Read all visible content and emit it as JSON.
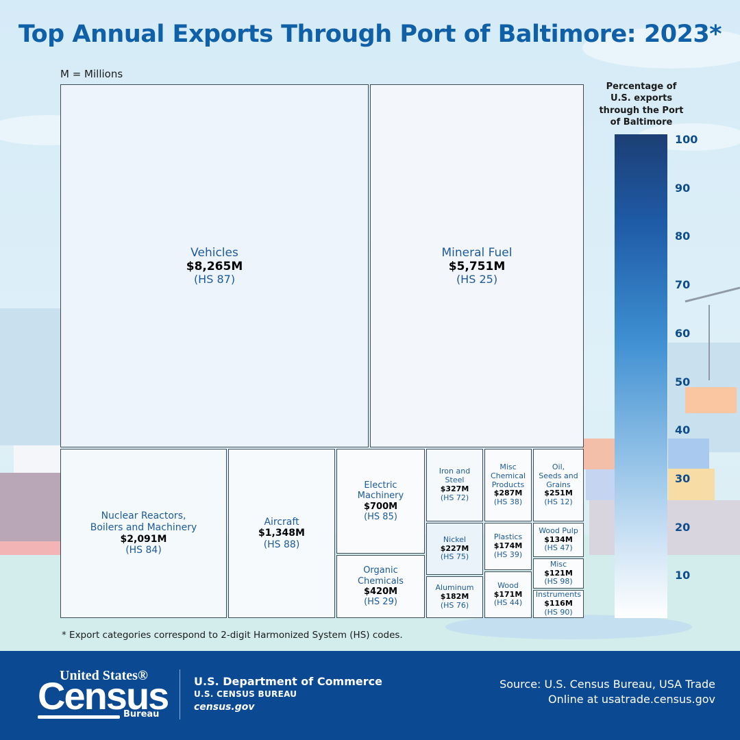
{
  "title": "Top Annual Exports Through Port of Baltimore: 2023*",
  "units_note": "M = Millions",
  "footnote": "* Export categories correspond to 2-digit Harmonized System (HS) codes.",
  "chart_data": {
    "type": "treemap",
    "title": "Top Annual Exports Through Port of Baltimore: 2023*",
    "value_unit": "Millions of dollars",
    "color_scale": {
      "label": "Percentage of U.S. exports through the Port of Baltimore",
      "ticks": [
        100,
        90,
        80,
        70,
        60,
        50,
        40,
        30,
        20,
        10
      ],
      "range": [
        0,
        100
      ],
      "colors": [
        "#ffffff",
        "#1c3f74"
      ]
    },
    "items": [
      {
        "name": "Vehicles",
        "value_label": "$8,265M",
        "value": 8265,
        "hs": "(HS 87)"
      },
      {
        "name": "Mineral Fuel",
        "value_label": "$5,751M",
        "value": 5751,
        "hs": "(HS 25)"
      },
      {
        "name": "Nuclear Reactors, Boilers and Machinery",
        "value_label": "$2,091M",
        "value": 2091,
        "hs": "(HS 84)"
      },
      {
        "name": "Aircraft",
        "value_label": "$1,348M",
        "value": 1348,
        "hs": "(HS 88)"
      },
      {
        "name": "Electric Machinery",
        "value_label": "$700M",
        "value": 700,
        "hs": "(HS 85)"
      },
      {
        "name": "Organic Chemicals",
        "value_label": "$420M",
        "value": 420,
        "hs": "(HS 29)"
      },
      {
        "name": "Iron and Steel",
        "value_label": "$327M",
        "value": 327,
        "hs": "(HS 72)"
      },
      {
        "name": "Nickel",
        "value_label": "$227M",
        "value": 227,
        "hs": "(HS 75)"
      },
      {
        "name": "Aluminum",
        "value_label": "$182M",
        "value": 182,
        "hs": "(HS 76)"
      },
      {
        "name": "Misc Chemical Products",
        "value_label": "$287M",
        "value": 287,
        "hs": "(HS 38)"
      },
      {
        "name": "Plastics",
        "value_label": "$174M",
        "value": 174,
        "hs": "(HS 39)"
      },
      {
        "name": "Wood",
        "value_label": "$171M",
        "value": 171,
        "hs": "(HS 44)"
      },
      {
        "name": "Oil, Seeds and Grains",
        "value_label": "$251M",
        "value": 251,
        "hs": "(HS 12)"
      },
      {
        "name": "Wood Pulp",
        "value_label": "$134M",
        "value": 134,
        "hs": "(HS 47)"
      },
      {
        "name": "Misc",
        "value_label": "$121M",
        "value": 121,
        "hs": "(HS 98)"
      },
      {
        "name": "Instruments",
        "value_label": "$116M",
        "value": 116,
        "hs": "(HS 90)"
      }
    ]
  },
  "footer": {
    "logo_top": "United States®",
    "logo_main": "Census",
    "logo_bottom": "Bureau",
    "dept": "U.S. Department of Commerce",
    "bureau": "U.S. CENSUS BUREAU",
    "website": "census.gov",
    "source": "Source: U.S. Census Bureau, USA Trade Online at usatrade.census.gov"
  }
}
